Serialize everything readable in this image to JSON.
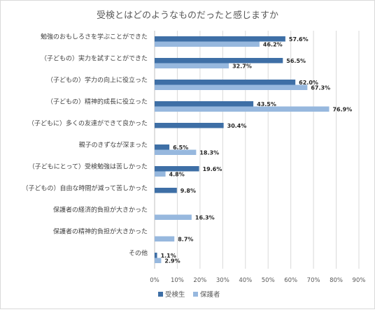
{
  "chart_data": {
    "type": "bar",
    "orientation": "horizontal",
    "title": "受検とはどのようなものだったと感じますか",
    "categories": [
      "勉強のおもしろさを学ぶことができた",
      "（子どもの）実力を試すことができた",
      "（子どもの）学力の向上に役立った",
      "（子どもの）精神的成長に役立った",
      "（子どもに）多くの友達ができて良かった",
      "親子のきずなが深まった",
      "（子どもにとって）受検勉強は苦しかった",
      "（子どもの）自由な時間が減って苦しかった",
      "保護者の経済的負担が大きかった",
      "保護者の精神的負担が大きかった",
      "その他"
    ],
    "series": [
      {
        "name": "受検生",
        "color": "#3e6fa6",
        "values": [
          57.6,
          56.5,
          62.0,
          43.5,
          30.4,
          6.5,
          19.6,
          9.8,
          null,
          null,
          1.1
        ],
        "labels": [
          "57.6%",
          "56.5%",
          "62.0%",
          "43.5%",
          "30.4%",
          "6.5%",
          "19.6%",
          "9.8%",
          "",
          "",
          "1.1%"
        ]
      },
      {
        "name": "保護者",
        "color": "#97b8de",
        "values": [
          46.2,
          32.7,
          67.3,
          76.9,
          null,
          18.3,
          4.8,
          null,
          16.3,
          8.7,
          2.9
        ],
        "labels": [
          "46.2%",
          "32.7%",
          "67.3%",
          "76.9%",
          "",
          "18.3%",
          "4.8%",
          "",
          "16.3%",
          "8.7%",
          "2.9%"
        ]
      }
    ],
    "xlim": [
      0,
      90
    ],
    "x_ticks": [
      0,
      10,
      20,
      30,
      40,
      50,
      60,
      70,
      80,
      90
    ],
    "x_tick_labels": [
      "0%",
      "10%",
      "20%",
      "30%",
      "40%",
      "50%",
      "60%",
      "70%",
      "80%",
      "90%"
    ],
    "grid": true,
    "legend_position": "bottom"
  }
}
